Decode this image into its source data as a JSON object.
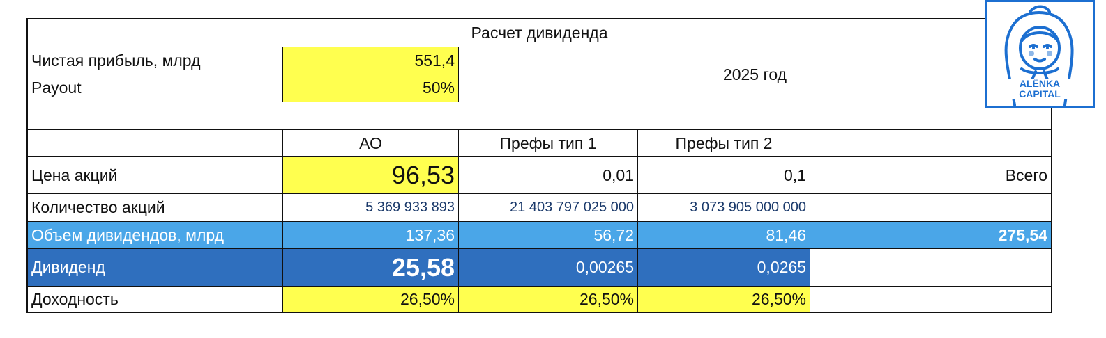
{
  "title": "Расчет дивиденда",
  "inputs": {
    "net_profit_label": "Чистая прибыль, млрд",
    "net_profit_value": "551,4",
    "payout_label": "Payout",
    "payout_value": "50%",
    "year": "2025 год"
  },
  "headers": {
    "ao": "АО",
    "pref1": "Префы тип 1",
    "pref2": "Префы тип 2"
  },
  "rows": {
    "price": {
      "label": "Цена акций",
      "ao": "96,53",
      "pref1": "0,01",
      "pref2": "0,1",
      "total": "Всего"
    },
    "shares": {
      "label": "Количество акций",
      "ao": "5 369 933 893",
      "pref1": "21 403 797 025 000",
      "pref2": "3 073 905 000 000"
    },
    "volume": {
      "label": "Объем дивидендов, млрд",
      "ao": "137,36",
      "pref1": "56,72",
      "pref2": "81,46",
      "total": "275,54"
    },
    "dividend": {
      "label": "Дивиденд",
      "ao": "25,58",
      "pref1": "0,00265",
      "pref2": "0,0265"
    },
    "yield": {
      "label": "Доходность",
      "ao": "26,50%",
      "pref1": "26,50%",
      "pref2": "26,50%"
    }
  },
  "logo": {
    "line1": "ALЁNKA",
    "line2": "CAPITAL"
  },
  "colors": {
    "yellow": "#ffff4f",
    "light_blue": "#4aa6e8",
    "dark_blue": "#2f6fbe",
    "logo_blue": "#1c6fd1"
  }
}
